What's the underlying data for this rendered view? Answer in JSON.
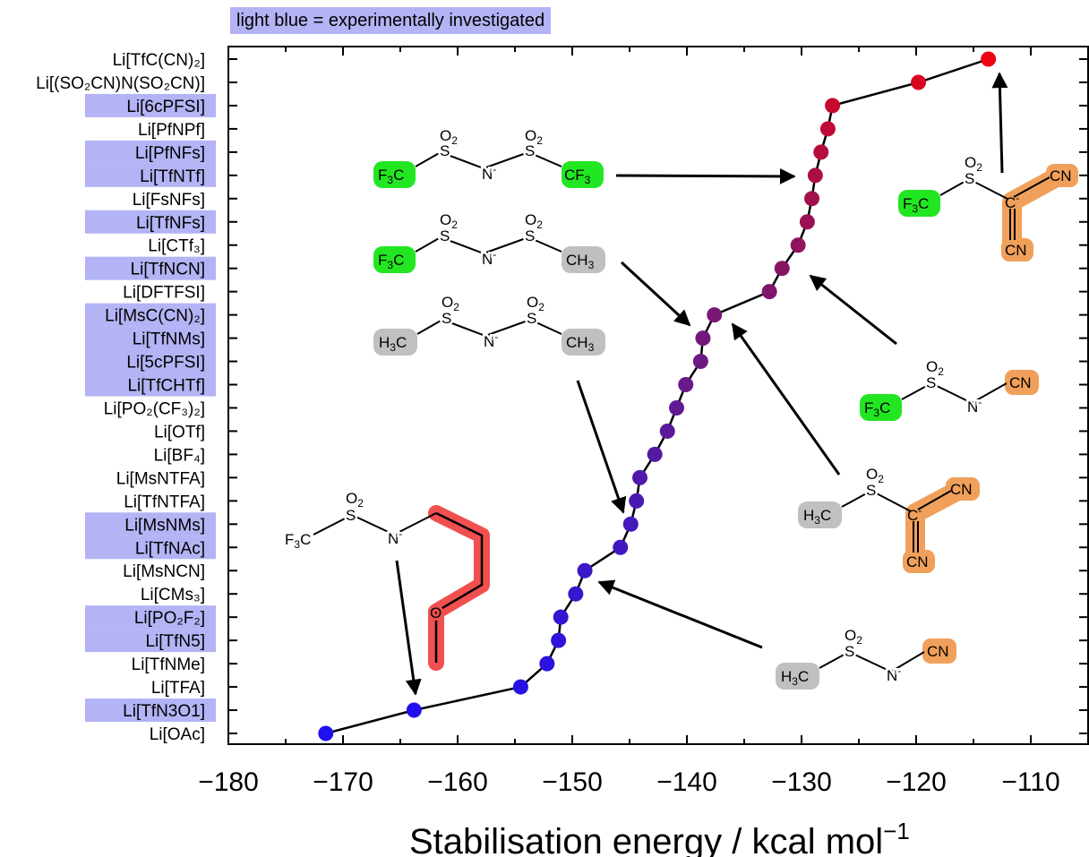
{
  "legend": {
    "text": "light blue = experimentally investigated",
    "color": "#b3b3f5"
  },
  "chart_data": {
    "type": "line",
    "xlabel": "Stabilisation energy / kcal mol",
    "xlabel_sup": "−1",
    "xlim": [
      -180,
      -105
    ],
    "xticks": [
      -180,
      -170,
      -160,
      -150,
      -140,
      -130,
      -120,
      -110
    ],
    "xtick_labels": [
      "−180",
      "−170",
      "−160",
      "−150",
      "−140",
      "−130",
      "−120",
      "−110"
    ],
    "series": [
      {
        "points": [
          {
            "label": "Li[OAc]",
            "tick": "Li[OAc]",
            "x": -171.5,
            "highlight": false,
            "color": "#1f10f0"
          },
          {
            "label": "Li[TfN3O1]",
            "tick": "Li[TfN3O1]",
            "x": -163.8,
            "highlight": true,
            "color": "#2210ec"
          },
          {
            "label": "Li[TFA]",
            "tick": "Li[TFA]",
            "x": -154.5,
            "highlight": false,
            "color": "#2612e6"
          },
          {
            "label": "Li[TfNMe]",
            "tick": "Li[TfNMe]",
            "x": -152.2,
            "highlight": false,
            "color": "#2a12e0"
          },
          {
            "label": "Li[TfN5]",
            "tick": "Li[TfN5]",
            "x": -151.2,
            "highlight": true,
            "color": "#2e14da"
          },
          {
            "label": "Li[PO2F2]",
            "tick": "Li[PO₂F₂]",
            "x": -151.0,
            "highlight": true,
            "color": "#3315d4"
          },
          {
            "label": "Li[CMs3]",
            "tick": "Li[CMs₃]",
            "x": -149.7,
            "highlight": false,
            "color": "#3716ce"
          },
          {
            "label": "Li[MsNCN]",
            "tick": "Li[MsNCN]",
            "x": -148.9,
            "highlight": false,
            "color": "#3b17c8"
          },
          {
            "label": "Li[TfNAc]",
            "tick": "Li[TfNAc]",
            "x": -145.8,
            "highlight": true,
            "color": "#4018c2"
          },
          {
            "label": "Li[MsNMs]",
            "tick": "Li[MsNMs]",
            "x": -144.9,
            "highlight": true,
            "color": "#4519bc"
          },
          {
            "label": "Li[TfNTFA]",
            "tick": "Li[TfNTFA]",
            "x": -144.4,
            "highlight": false,
            "color": "#4a19b4"
          },
          {
            "label": "Li[MsNTFA]",
            "tick": "Li[MsNTFA]",
            "x": -144.1,
            "highlight": false,
            "color": "#5019ac"
          },
          {
            "label": "Li[BF4]",
            "tick": "Li[BF₄]",
            "x": -142.8,
            "highlight": false,
            "color": "#5519a4"
          },
          {
            "label": "Li[OTf]",
            "tick": "Li[OTf]",
            "x": -141.7,
            "highlight": false,
            "color": "#5b199c"
          },
          {
            "label": "Li[PO2(CF3)2]",
            "tick": "Li[PO₂(CF₃)₂]",
            "x": -140.9,
            "highlight": false,
            "color": "#621994"
          },
          {
            "label": "Li[TfCHTf]",
            "tick": "Li[TfCHTf]",
            "x": -140.1,
            "highlight": true,
            "color": "#68198c"
          },
          {
            "label": "Li[5cPFSI]",
            "tick": "Li[5cPFSI]",
            "x": -138.8,
            "highlight": true,
            "color": "#6e1884"
          },
          {
            "label": "Li[TfNMs]",
            "tick": "Li[TfNMs]",
            "x": -138.6,
            "highlight": true,
            "color": "#74187c"
          },
          {
            "label": "Li[MsC(CN)2]",
            "tick": "Li[MsC(CN)₂]",
            "x": -137.6,
            "highlight": true,
            "color": "#7a1774"
          },
          {
            "label": "Li[DFTFSI]",
            "tick": "Li[DFTFSI]",
            "x": -132.8,
            "highlight": false,
            "color": "#80166c"
          },
          {
            "label": "Li[TfNCN]",
            "tick": "Li[TfNCN]",
            "x": -131.7,
            "highlight": true,
            "color": "#881564"
          },
          {
            "label": "Li[CTf3]",
            "tick": "Li[CTf₃]",
            "x": -130.3,
            "highlight": false,
            "color": "#90145c"
          },
          {
            "label": "Li[TfNFs]",
            "tick": "Li[TfNFs]",
            "x": -129.5,
            "highlight": true,
            "color": "#991254"
          },
          {
            "label": "Li[FsNFs]",
            "tick": "Li[FsNFs]",
            "x": -129.1,
            "highlight": false,
            "color": "#a2104c"
          },
          {
            "label": "Li[TfNTf]",
            "tick": "Li[TfNTf]",
            "x": -128.8,
            "highlight": true,
            "color": "#ab0e44"
          },
          {
            "label": "Li[PfNFs]",
            "tick": "Li[PfNFs]",
            "x": -128.3,
            "highlight": true,
            "color": "#b40c3c"
          },
          {
            "label": "Li[PfNPf]",
            "tick": "Li[PfNPf]",
            "x": -127.7,
            "highlight": false,
            "color": "#be0a34"
          },
          {
            "label": "Li[6cPFSI]",
            "tick": "Li[6cPFSI]",
            "x": -127.3,
            "highlight": true,
            "color": "#c8082c"
          },
          {
            "label": "Li[(SO2CN)N(SO2CN)]",
            "tick": "Li[(SO₂CN)N(SO₂CN)]",
            "x": -119.8,
            "highlight": false,
            "color": "#d80620"
          },
          {
            "label": "Li[TfC(CN)2]",
            "tick": "Li[TfC(CN)₂]",
            "x": -113.7,
            "highlight": false,
            "color": "#ee0414"
          }
        ]
      }
    ],
    "grid": false
  },
  "structures": {
    "tfntf": {
      "s1": "S",
      "s2": "S",
      "o1": "O",
      "o2": "O",
      "sub": "2",
      "n": "N",
      "minus": "-",
      "left": "F",
      "left_sub": "3",
      "left_end": "C",
      "right": "CF",
      "right_sub": "3"
    },
    "tfnms": {
      "s1": "S",
      "s2": "S",
      "o1": "O",
      "o2": "O",
      "sub": "2",
      "n": "N",
      "minus": "-",
      "left": "F",
      "left_sub": "3",
      "left_end": "C",
      "right": "CH",
      "right_sub": "3"
    },
    "msnms": {
      "s1": "S",
      "s2": "S",
      "o1": "O",
      "o2": "O",
      "sub": "2",
      "n": "N",
      "minus": "-",
      "left": "H",
      "left_sub": "3",
      "left_end": "C",
      "right": "CH",
      "right_sub": "3"
    },
    "tfn3o1": {
      "s": "S",
      "o": "O",
      "sub": "2",
      "n": "N",
      "minus": "-",
      "left": "F",
      "left_sub": "3",
      "left_end": "C",
      "o_ring": "O"
    },
    "tfccn2": {
      "s": "S",
      "o": "O",
      "sub": "2",
      "c": "C",
      "minus": "-",
      "left": "F",
      "left_sub": "3",
      "left_end": "C",
      "cn1": "CN",
      "cn2": "CN"
    },
    "tfncn": {
      "s": "S",
      "o": "O",
      "sub": "2",
      "n": "N",
      "minus": "-",
      "left": "F",
      "left_sub": "3",
      "left_end": "C",
      "cn": "CN"
    },
    "msccn2": {
      "s": "S",
      "o": "O",
      "sub": "2",
      "c": "C",
      "minus": "-",
      "left": "H",
      "left_sub": "3",
      "left_end": "C",
      "cn1": "CN",
      "cn2": "CN"
    },
    "msncn": {
      "s": "S",
      "o": "O",
      "sub": "2",
      "n": "N",
      "minus": "-",
      "left": "H",
      "left_sub": "3",
      "left_end": "C",
      "cn": "CN"
    }
  },
  "colors": {
    "cf3": "#22e622",
    "ch3": "#c0c0c0",
    "cn": "#f0a05a",
    "ring": "#f05050",
    "highlight": "#b3b3f5"
  }
}
